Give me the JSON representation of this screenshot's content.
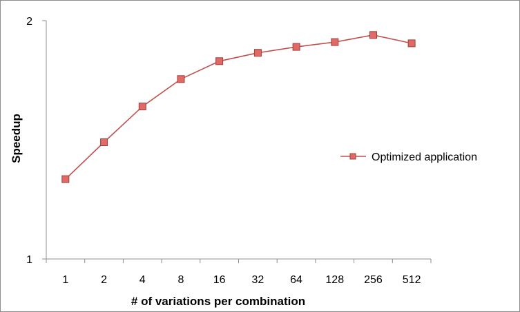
{
  "chart_data": {
    "type": "line",
    "categories": [
      "1",
      "2",
      "4",
      "8",
      "16",
      "32",
      "64",
      "128",
      "256",
      "512"
    ],
    "series": [
      {
        "name": "Optimized application",
        "values": [
          1.335,
          1.49,
          1.64,
          1.755,
          1.83,
          1.865,
          1.89,
          1.91,
          1.94,
          1.905
        ],
        "color": "#c0504d",
        "marker": "square"
      }
    ],
    "xlabel": "# of variations per combination",
    "ylabel": "Speedup",
    "ylim": [
      1,
      2
    ],
    "yticks": [
      "1",
      "2"
    ],
    "grid": false,
    "legend_position": "right"
  }
}
